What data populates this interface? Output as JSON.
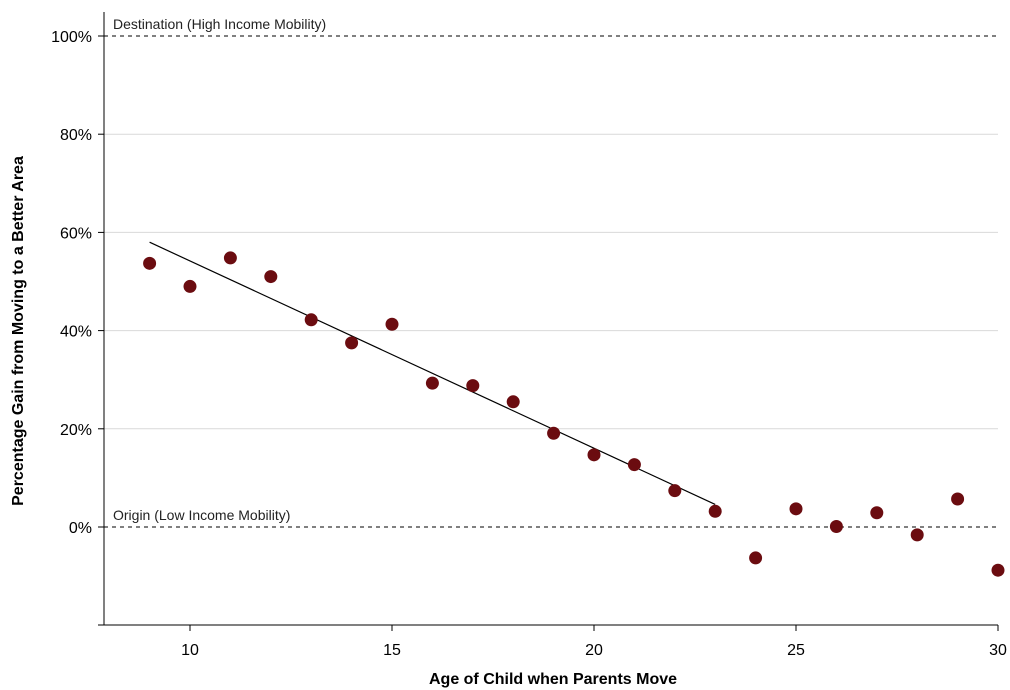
{
  "chart_data": {
    "type": "scatter",
    "title": "",
    "xlabel": "Age of Child when Parents Move",
    "ylabel": "Percentage Gain from Moving to a Better Area",
    "xlim": [
      8,
      30
    ],
    "ylim": [
      -20,
      100
    ],
    "x_ticks": [
      10,
      15,
      20,
      25,
      30
    ],
    "y_ticks": [
      0,
      20,
      40,
      60,
      80,
      100
    ],
    "y_tick_labels": [
      "0%",
      "20%",
      "40%",
      "60%",
      "80%",
      "100%"
    ],
    "grid": true,
    "point_color": "#6b0c10",
    "series": [
      {
        "x": [
          9,
          10,
          11,
          12,
          13,
          14,
          15,
          16,
          17,
          18,
          19,
          20,
          21,
          22,
          23,
          24,
          25,
          26,
          27,
          28,
          29,
          30
        ],
        "y": [
          53.7,
          49.0,
          54.8,
          51.0,
          42.2,
          37.5,
          41.3,
          29.3,
          28.8,
          25.5,
          19.1,
          14.7,
          12.7,
          7.4,
          3.2,
          -6.3,
          3.7,
          0.1,
          2.9,
          -1.6,
          5.7,
          -8.8
        ]
      }
    ],
    "fit_line": {
      "x": [
        9,
        23
      ],
      "y": [
        58.0,
        4.6
      ]
    },
    "reference_lines": [
      {
        "y": 100,
        "label": "Destination (High Income Mobility)"
      },
      {
        "y": 0,
        "label": "Origin (Low Income Mobility)"
      }
    ]
  }
}
